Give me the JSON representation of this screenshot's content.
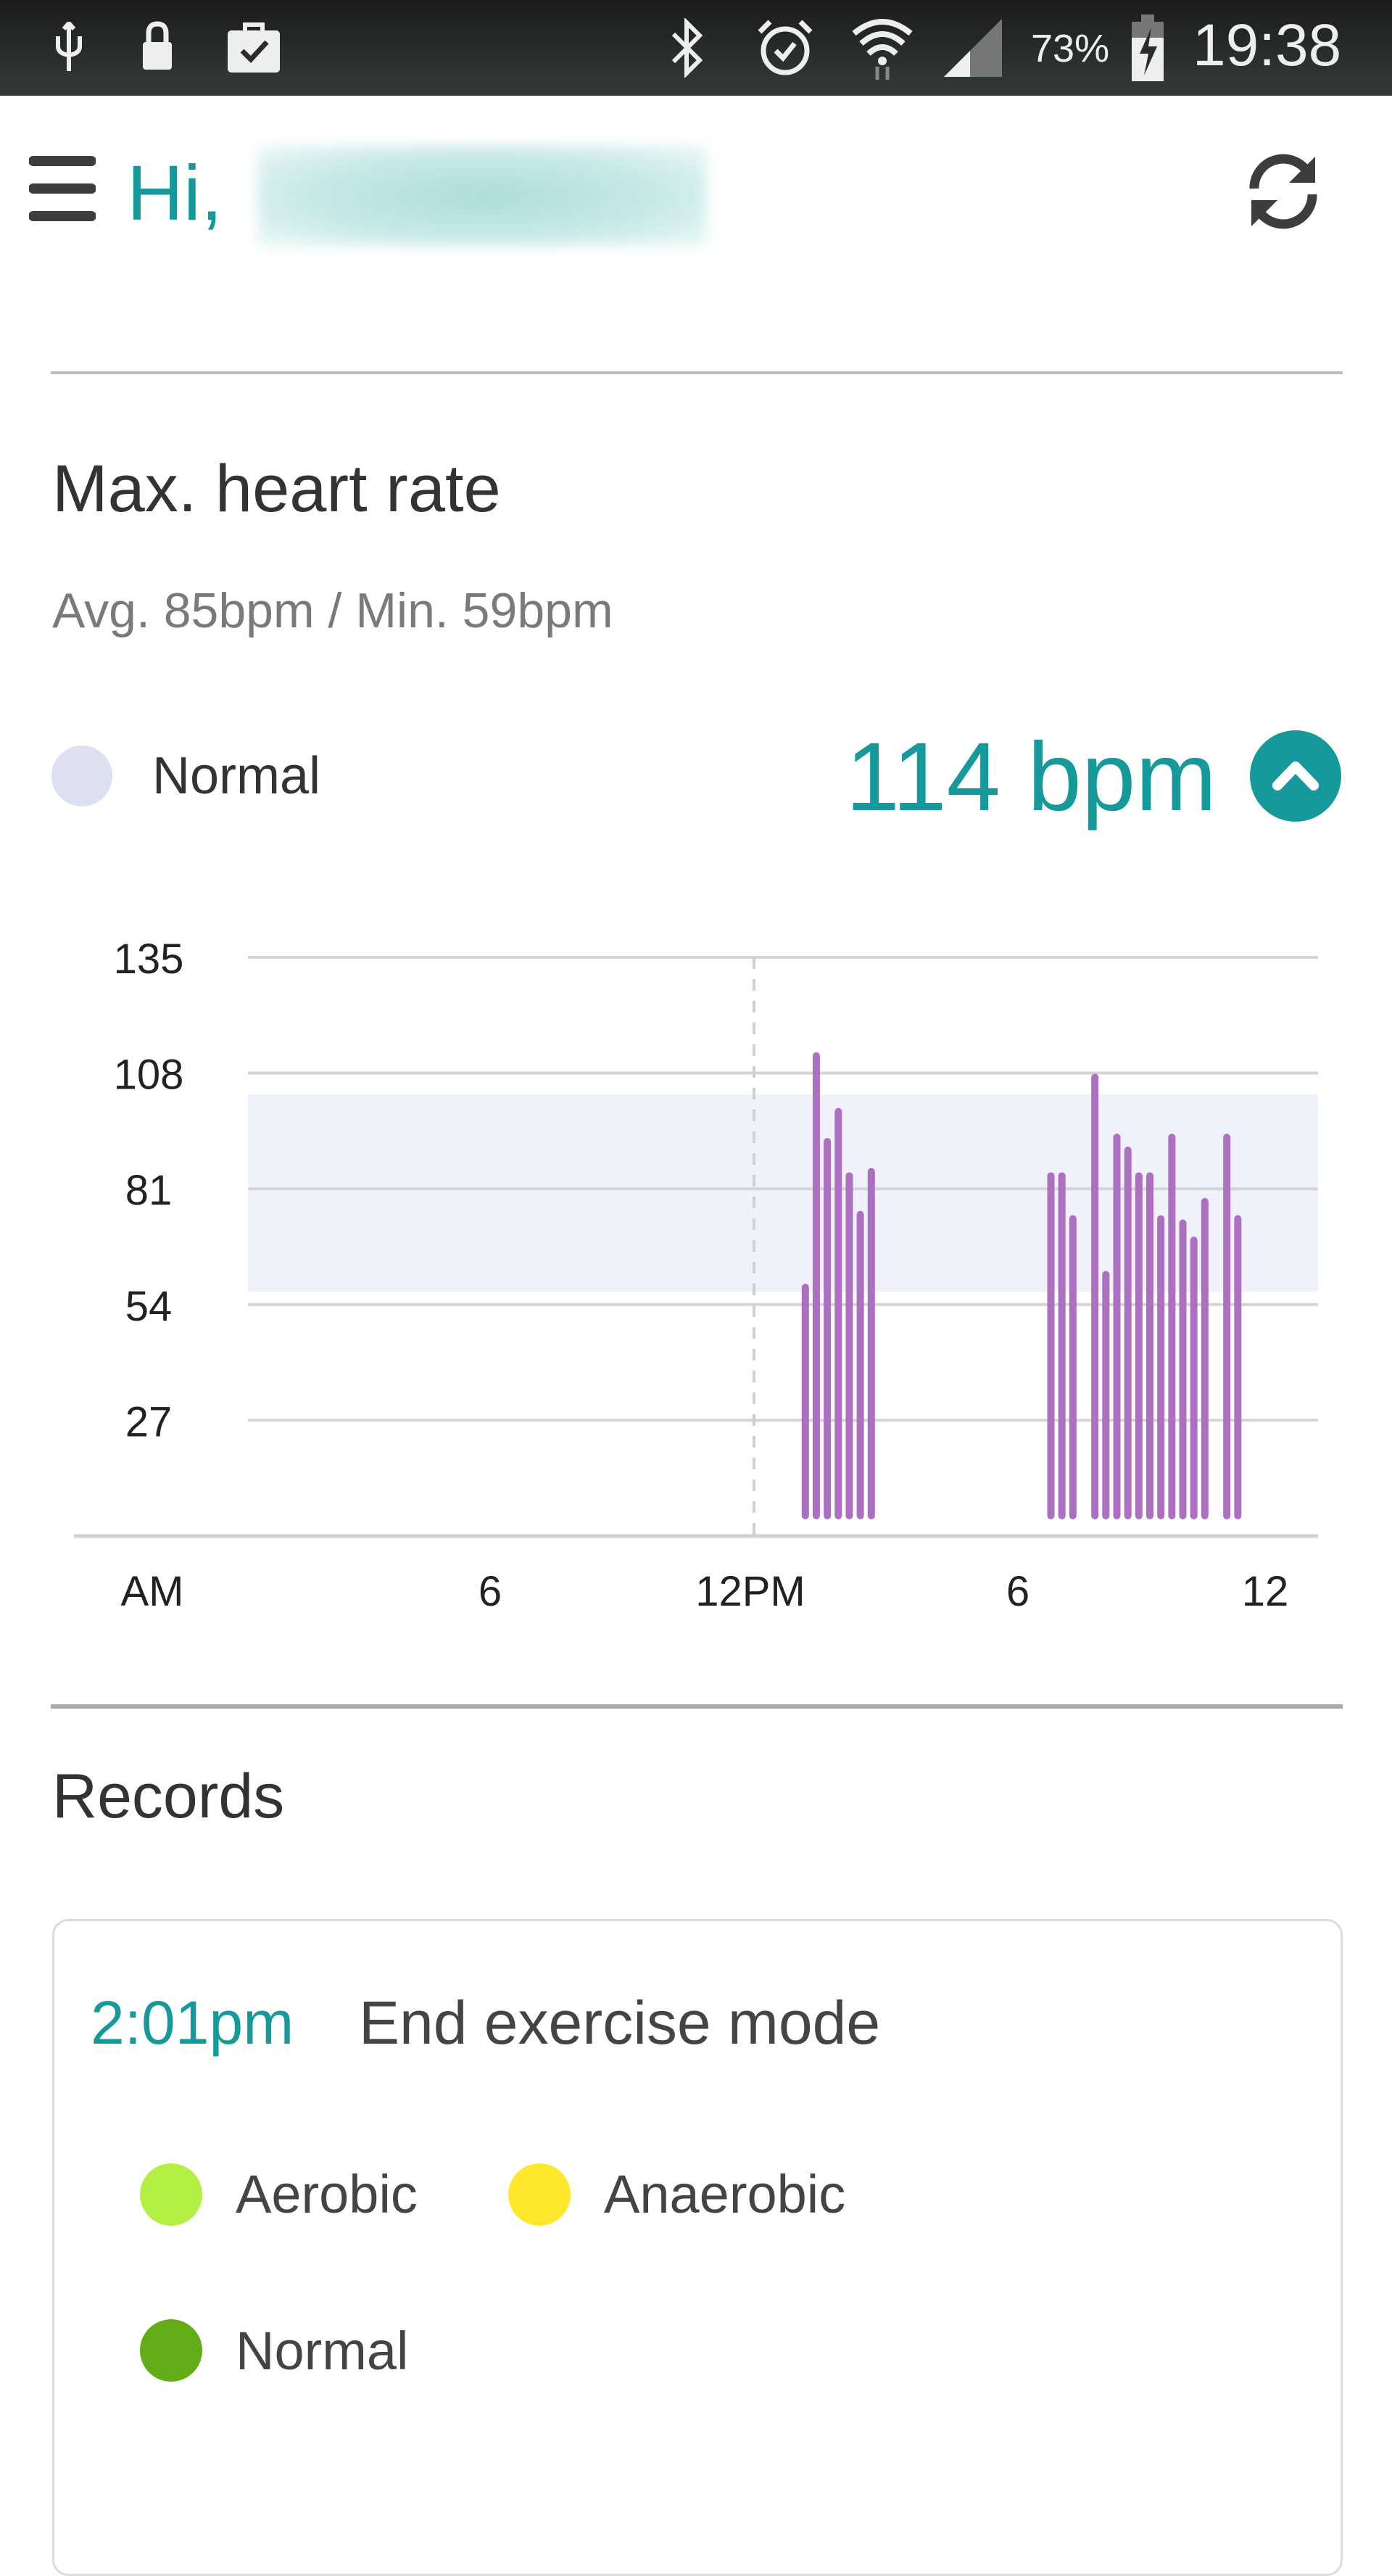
{
  "status_bar": {
    "icons": [
      "usb-icon",
      "lock-icon",
      "briefcase-check-icon",
      "bluetooth-icon",
      "alarm-icon",
      "wifi-icon",
      "signal-icon",
      "battery-charging-icon"
    ],
    "battery_percent": "73%",
    "time": "19:38"
  },
  "header": {
    "greeting": "Hi,",
    "menu_icon": "hamburger-icon",
    "sync_icon": "sync-icon",
    "accent_color": "#16999a"
  },
  "heart_rate": {
    "title": "Max. heart rate",
    "subtitle": "Avg. 85bpm / Min. 59bpm",
    "legend_label": "Normal",
    "legend_color": "#dde0f1",
    "max_value": "114 bpm",
    "toggle_icon": "chevron-up-icon"
  },
  "chart_data": {
    "type": "bar",
    "y_ticks": [
      "135",
      "108",
      "81",
      "54",
      "27"
    ],
    "ylim": [
      0,
      135
    ],
    "x_tick_labels": [
      "AM",
      "6",
      "12PM",
      "6",
      "12"
    ],
    "x_range_hours": [
      0,
      24
    ],
    "grid": true,
    "normal_band": [
      57,
      103
    ],
    "bar_color": "#ad6fbf",
    "band_color": "#eff1fb",
    "bars": [
      {
        "time": "13:10",
        "value": 58
      },
      {
        "time": "13:25",
        "value": 112
      },
      {
        "time": "13:40",
        "value": 92
      },
      {
        "time": "13:55",
        "value": 99
      },
      {
        "time": "14:10",
        "value": 84
      },
      {
        "time": "14:25",
        "value": 75
      },
      {
        "time": "14:40",
        "value": 85
      },
      {
        "time": "18:45",
        "value": 84
      },
      {
        "time": "19:00",
        "value": 84
      },
      {
        "time": "19:15",
        "value": 74
      },
      {
        "time": "19:45",
        "value": 107
      },
      {
        "time": "20:00",
        "value": 61
      },
      {
        "time": "20:15",
        "value": 93
      },
      {
        "time": "20:30",
        "value": 90
      },
      {
        "time": "20:45",
        "value": 84
      },
      {
        "time": "21:00",
        "value": 84
      },
      {
        "time": "21:15",
        "value": 74
      },
      {
        "time": "21:30",
        "value": 93
      },
      {
        "time": "21:45",
        "value": 73
      },
      {
        "time": "22:00",
        "value": 69
      },
      {
        "time": "22:15",
        "value": 78
      },
      {
        "time": "22:45",
        "value": 93
      },
      {
        "time": "23:00",
        "value": 74
      }
    ]
  },
  "records": {
    "title": "Records",
    "items": [
      {
        "time": "2:01pm",
        "event": "End exercise mode",
        "legend": [
          {
            "label": "Aerobic",
            "color": "#b3f043"
          },
          {
            "label": "Anaerobic",
            "color": "#ffe72c"
          },
          {
            "label": "Normal",
            "color": "#62ad17"
          }
        ]
      }
    ]
  }
}
